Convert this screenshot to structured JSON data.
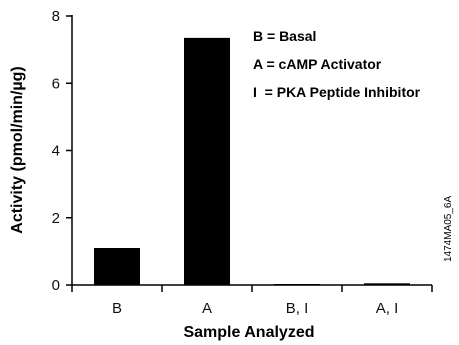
{
  "chart_data": {
    "type": "bar",
    "categories": [
      "B",
      "A",
      "B, I",
      "A, I"
    ],
    "values": [
      1.1,
      7.35,
      0.03,
      0.05
    ],
    "xlabel": "Sample Analyzed",
    "ylabel": "Activity (pmol/min/µg)",
    "ylim": [
      0,
      8
    ],
    "yticks": [
      "0",
      "2",
      "4",
      "6",
      "8"
    ],
    "grid": false,
    "legend_position": "top-right",
    "legend": [
      "B = Basal",
      "A = cAMP Activator",
      "I  = PKA Peptide Inhibitor"
    ],
    "bar_color": "#000000"
  },
  "figure_id": "1474MA05_6A"
}
